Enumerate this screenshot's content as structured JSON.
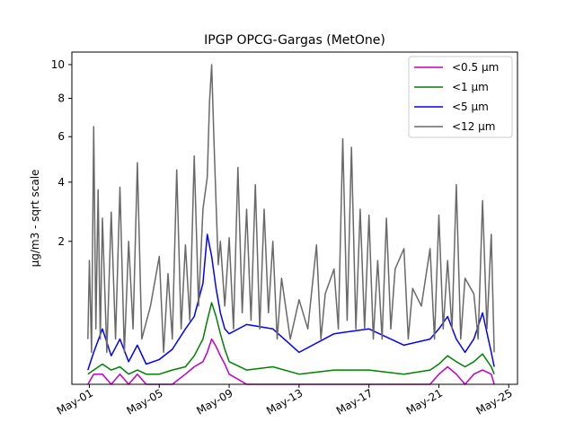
{
  "chart_data": {
    "type": "line",
    "title": "IPGP OPCG-Gargas (MetOne)",
    "xlabel": "",
    "ylabel": "µg/m3 - sqrt scale",
    "y_scale": "sqrt",
    "ylim": [
      0,
      10.8
    ],
    "xlim": [
      "2023-04-30T00:00",
      "2023-05-25T12:00"
    ],
    "legend_position": "top-right",
    "grid": false,
    "x_ticks": [
      {
        "date": "2023-05-01",
        "label": "May-01"
      },
      {
        "date": "2023-05-05",
        "label": "May-05"
      },
      {
        "date": "2023-05-09",
        "label": "May-09"
      },
      {
        "date": "2023-05-13",
        "label": "May-13"
      },
      {
        "date": "2023-05-17",
        "label": "May-17"
      },
      {
        "date": "2023-05-21",
        "label": "May-21"
      },
      {
        "date": "2023-05-25",
        "label": "May-25"
      }
    ],
    "y_ticks": [
      {
        "value": 2,
        "label": "2"
      },
      {
        "value": 4,
        "label": "4"
      },
      {
        "value": 6,
        "label": "6"
      },
      {
        "value": 8,
        "label": "8"
      },
      {
        "value": 10,
        "label": "10"
      }
    ],
    "series": [
      {
        "name": "<0.5 µm",
        "color": "#bf00bf",
        "points": [
          [
            "2023-04-30T22:00",
            0.0
          ],
          [
            "2023-05-01T06:00",
            0.01
          ],
          [
            "2023-05-01T18:00",
            0.01
          ],
          [
            "2023-05-02T06:00",
            0.0
          ],
          [
            "2023-05-02T18:00",
            0.01
          ],
          [
            "2023-05-03T06:00",
            0.0
          ],
          [
            "2023-05-03T18:00",
            0.01
          ],
          [
            "2023-05-04T06:00",
            0.0
          ],
          [
            "2023-05-05T00:00",
            0.0
          ],
          [
            "2023-05-05T18:00",
            0.0
          ],
          [
            "2023-05-06T12:00",
            0.01
          ],
          [
            "2023-05-07T00:00",
            0.03
          ],
          [
            "2023-05-07T12:00",
            0.05
          ],
          [
            "2023-05-07T18:00",
            0.1
          ],
          [
            "2023-05-08T00:00",
            0.2
          ],
          [
            "2023-05-08T06:00",
            0.14
          ],
          [
            "2023-05-08T12:00",
            0.08
          ],
          [
            "2023-05-08T18:00",
            0.04
          ],
          [
            "2023-05-09T00:00",
            0.01
          ],
          [
            "2023-05-10T00:00",
            0.0
          ],
          [
            "2023-05-11T12:00",
            0.0
          ],
          [
            "2023-05-13T00:00",
            0.0
          ],
          [
            "2023-05-15T00:00",
            0.0
          ],
          [
            "2023-05-17T00:00",
            0.0
          ],
          [
            "2023-05-19T00:00",
            0.0
          ],
          [
            "2023-05-20T12:00",
            0.0
          ],
          [
            "2023-05-21T00:00",
            0.01
          ],
          [
            "2023-05-21T12:00",
            0.03
          ],
          [
            "2023-05-22T00:00",
            0.01
          ],
          [
            "2023-05-22T12:00",
            0.0
          ],
          [
            "2023-05-23T00:00",
            0.01
          ],
          [
            "2023-05-23T12:00",
            0.02
          ],
          [
            "2023-05-24T00:00",
            0.01
          ],
          [
            "2023-05-24T04:00",
            0.0
          ]
        ]
      },
      {
        "name": "<1 µm",
        "color": "#008000",
        "points": [
          [
            "2023-04-30T22:00",
            0.01
          ],
          [
            "2023-05-01T06:00",
            0.02
          ],
          [
            "2023-05-01T18:00",
            0.04
          ],
          [
            "2023-05-02T06:00",
            0.02
          ],
          [
            "2023-05-02T18:00",
            0.03
          ],
          [
            "2023-05-03T06:00",
            0.01
          ],
          [
            "2023-05-03T18:00",
            0.02
          ],
          [
            "2023-05-04T06:00",
            0.01
          ],
          [
            "2023-05-05T00:00",
            0.01
          ],
          [
            "2023-05-05T18:00",
            0.02
          ],
          [
            "2023-05-06T12:00",
            0.03
          ],
          [
            "2023-05-07T00:00",
            0.08
          ],
          [
            "2023-05-07T12:00",
            0.2
          ],
          [
            "2023-05-07T18:00",
            0.4
          ],
          [
            "2023-05-08T00:00",
            0.65
          ],
          [
            "2023-05-08T06:00",
            0.45
          ],
          [
            "2023-05-08T12:00",
            0.25
          ],
          [
            "2023-05-08T18:00",
            0.12
          ],
          [
            "2023-05-09T00:00",
            0.05
          ],
          [
            "2023-05-10T00:00",
            0.02
          ],
          [
            "2023-05-11T12:00",
            0.03
          ],
          [
            "2023-05-13T00:00",
            0.01
          ],
          [
            "2023-05-15T00:00",
            0.02
          ],
          [
            "2023-05-17T00:00",
            0.02
          ],
          [
            "2023-05-19T00:00",
            0.01
          ],
          [
            "2023-05-20T12:00",
            0.02
          ],
          [
            "2023-05-21T00:00",
            0.04
          ],
          [
            "2023-05-21T12:00",
            0.08
          ],
          [
            "2023-05-22T00:00",
            0.05
          ],
          [
            "2023-05-22T12:00",
            0.03
          ],
          [
            "2023-05-23T00:00",
            0.05
          ],
          [
            "2023-05-23T12:00",
            0.09
          ],
          [
            "2023-05-24T00:00",
            0.03
          ],
          [
            "2023-05-24T04:00",
            0.01
          ]
        ]
      },
      {
        "name": "<5 µm",
        "color": "#0000ff",
        "points": [
          [
            "2023-04-30T22:00",
            0.02
          ],
          [
            "2023-05-01T06:00",
            0.1
          ],
          [
            "2023-05-01T18:00",
            0.3
          ],
          [
            "2023-05-02T06:00",
            0.08
          ],
          [
            "2023-05-02T18:00",
            0.2
          ],
          [
            "2023-05-03T06:00",
            0.05
          ],
          [
            "2023-05-03T18:00",
            0.15
          ],
          [
            "2023-05-04T06:00",
            0.04
          ],
          [
            "2023-05-05T00:00",
            0.06
          ],
          [
            "2023-05-05T18:00",
            0.12
          ],
          [
            "2023-05-06T12:00",
            0.3
          ],
          [
            "2023-05-07T00:00",
            0.45
          ],
          [
            "2023-05-07T12:00",
            1.0
          ],
          [
            "2023-05-07T18:00",
            2.2
          ],
          [
            "2023-05-08T00:00",
            1.6
          ],
          [
            "2023-05-08T06:00",
            0.9
          ],
          [
            "2023-05-08T12:00",
            0.5
          ],
          [
            "2023-05-08T18:00",
            0.3
          ],
          [
            "2023-05-09T00:00",
            0.25
          ],
          [
            "2023-05-10T00:00",
            0.35
          ],
          [
            "2023-05-11T12:00",
            0.3
          ],
          [
            "2023-05-13T00:00",
            0.1
          ],
          [
            "2023-05-15T00:00",
            0.25
          ],
          [
            "2023-05-17T00:00",
            0.3
          ],
          [
            "2023-05-19T00:00",
            0.15
          ],
          [
            "2023-05-20T12:00",
            0.2
          ],
          [
            "2023-05-21T00:00",
            0.3
          ],
          [
            "2023-05-21T12:00",
            0.45
          ],
          [
            "2023-05-22T00:00",
            0.2
          ],
          [
            "2023-05-22T12:00",
            0.1
          ],
          [
            "2023-05-23T00:00",
            0.2
          ],
          [
            "2023-05-23T12:00",
            0.5
          ],
          [
            "2023-05-24T00:00",
            0.1
          ],
          [
            "2023-05-24T04:00",
            0.03
          ]
        ]
      },
      {
        "name": "<12 µm",
        "color": "#696969",
        "points": [
          [
            "2023-04-30T22:00",
            0.2
          ],
          [
            "2023-05-01T00:00",
            1.5
          ],
          [
            "2023-05-01T03:00",
            0.1
          ],
          [
            "2023-05-01T06:00",
            6.5
          ],
          [
            "2023-05-01T09:00",
            0.3
          ],
          [
            "2023-05-01T12:00",
            3.7
          ],
          [
            "2023-05-01T15:00",
            0.2
          ],
          [
            "2023-05-01T18:00",
            2.7
          ],
          [
            "2023-05-02T00:00",
            0.1
          ],
          [
            "2023-05-02T06:00",
            2.9
          ],
          [
            "2023-05-02T12:00",
            0.2
          ],
          [
            "2023-05-02T18:00",
            3.8
          ],
          [
            "2023-05-03T00:00",
            0.1
          ],
          [
            "2023-05-03T06:00",
            2.0
          ],
          [
            "2023-05-03T12:00",
            0.3
          ],
          [
            "2023-05-03T18:00",
            4.8
          ],
          [
            "2023-05-04T00:00",
            0.2
          ],
          [
            "2023-05-04T12:00",
            0.6
          ],
          [
            "2023-05-05T00:00",
            1.6
          ],
          [
            "2023-05-05T06:00",
            0.1
          ],
          [
            "2023-05-05T12:00",
            1.2
          ],
          [
            "2023-05-05T18:00",
            0.2
          ],
          [
            "2023-05-06T00:00",
            4.5
          ],
          [
            "2023-05-06T06:00",
            0.3
          ],
          [
            "2023-05-06T12:00",
            1.9
          ],
          [
            "2023-05-06T18:00",
            0.4
          ],
          [
            "2023-05-07T00:00",
            5.1
          ],
          [
            "2023-05-07T06:00",
            0.6
          ],
          [
            "2023-05-07T12:00",
            3.0
          ],
          [
            "2023-05-07T18:00",
            4.2
          ],
          [
            "2023-05-07T21:00",
            7.8
          ],
          [
            "2023-05-08T00:00",
            10.0
          ],
          [
            "2023-05-08T03:00",
            6.0
          ],
          [
            "2023-05-08T06:00",
            3.2
          ],
          [
            "2023-05-08T09:00",
            1.4
          ],
          [
            "2023-05-08T12:00",
            2.0
          ],
          [
            "2023-05-08T18:00",
            0.6
          ],
          [
            "2023-05-09T00:00",
            2.1
          ],
          [
            "2023-05-09T06:00",
            0.3
          ],
          [
            "2023-05-09T12:00",
            4.6
          ],
          [
            "2023-05-09T18:00",
            0.5
          ],
          [
            "2023-05-10T00:00",
            3.0
          ],
          [
            "2023-05-10T06:00",
            0.4
          ],
          [
            "2023-05-10T12:00",
            3.9
          ],
          [
            "2023-05-10T18:00",
            0.3
          ],
          [
            "2023-05-11T00:00",
            3.0
          ],
          [
            "2023-05-11T06:00",
            0.5
          ],
          [
            "2023-05-11T12:00",
            2.0
          ],
          [
            "2023-05-11T18:00",
            0.2
          ],
          [
            "2023-05-12T00:00",
            1.1
          ],
          [
            "2023-05-12T12:00",
            0.2
          ],
          [
            "2023-05-13T00:00",
            0.7
          ],
          [
            "2023-05-13T12:00",
            0.3
          ],
          [
            "2023-05-14T00:00",
            1.9
          ],
          [
            "2023-05-14T06:00",
            0.2
          ],
          [
            "2023-05-14T12:00",
            0.8
          ],
          [
            "2023-05-15T00:00",
            1.3
          ],
          [
            "2023-05-15T06:00",
            0.3
          ],
          [
            "2023-05-15T12:00",
            5.9
          ],
          [
            "2023-05-15T18:00",
            0.4
          ],
          [
            "2023-05-16T00:00",
            5.5
          ],
          [
            "2023-05-16T06:00",
            0.3
          ],
          [
            "2023-05-16T12:00",
            3.0
          ],
          [
            "2023-05-16T18:00",
            0.3
          ],
          [
            "2023-05-17T00:00",
            2.8
          ],
          [
            "2023-05-17T06:00",
            0.2
          ],
          [
            "2023-05-17T12:00",
            1.5
          ],
          [
            "2023-05-17T18:00",
            0.2
          ],
          [
            "2023-05-18T00:00",
            2.7
          ],
          [
            "2023-05-18T06:00",
            0.3
          ],
          [
            "2023-05-18T12:00",
            1.3
          ],
          [
            "2023-05-19T00:00",
            1.8
          ],
          [
            "2023-05-19T06:00",
            0.2
          ],
          [
            "2023-05-19T12:00",
            0.9
          ],
          [
            "2023-05-20T00:00",
            0.6
          ],
          [
            "2023-05-20T12:00",
            1.8
          ],
          [
            "2023-05-20T18:00",
            0.2
          ],
          [
            "2023-05-21T00:00",
            2.8
          ],
          [
            "2023-05-21T06:00",
            0.3
          ],
          [
            "2023-05-21T12:00",
            1.5
          ],
          [
            "2023-05-21T18:00",
            0.3
          ],
          [
            "2023-05-22T00:00",
            3.9
          ],
          [
            "2023-05-22T06:00",
            0.2
          ],
          [
            "2023-05-22T12:00",
            1.1
          ],
          [
            "2023-05-23T00:00",
            0.8
          ],
          [
            "2023-05-23T06:00",
            0.2
          ],
          [
            "2023-05-23T12:00",
            3.3
          ],
          [
            "2023-05-23T18:00",
            0.3
          ],
          [
            "2023-05-24T00:00",
            2.2
          ],
          [
            "2023-05-24T04:00",
            0.1
          ]
        ]
      }
    ]
  }
}
